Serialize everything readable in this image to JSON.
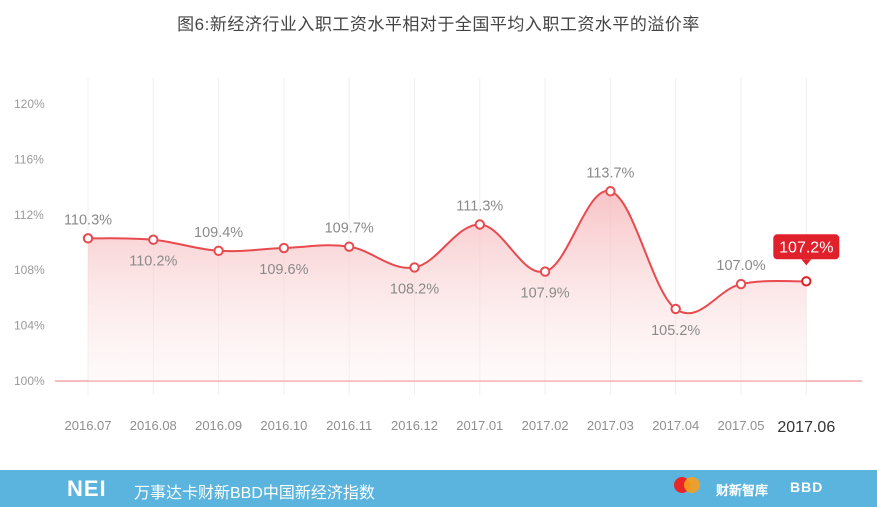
{
  "title": "图6:新经济行业入职工资水平相对于全国平均入职工资水平的溢价率",
  "footer": {
    "logo": "NEI",
    "text": "万事达卡财新BBD中国新经济指数",
    "partner_logos": [
      "mastercard-logo",
      "财新智库",
      "BBD"
    ],
    "caixin_label": "财新智库",
    "bbd_label": "BBD",
    "background": "#5ab4dd"
  },
  "chart_data": {
    "type": "area",
    "categories": [
      "2016.07",
      "2016.08",
      "2016.09",
      "2016.10",
      "2016.11",
      "2016.12",
      "2017.01",
      "2017.02",
      "2017.03",
      "2017.04",
      "2017.05",
      "2017.06"
    ],
    "values": [
      110.3,
      110.2,
      109.4,
      109.6,
      109.7,
      108.2,
      111.3,
      107.9,
      113.7,
      105.2,
      107.0,
      107.2
    ],
    "labels": [
      "110.3%",
      "110.2%",
      "109.4%",
      "109.6%",
      "109.7%",
      "108.2%",
      "111.3%",
      "107.9%",
      "113.7%",
      "105.2%",
      "107.0%",
      "107.2%"
    ],
    "ylim": [
      100,
      120
    ],
    "yticks": [
      100,
      104,
      108,
      112,
      116,
      120
    ],
    "ytick_labels": [
      "100%",
      "104%",
      "108%",
      "112%",
      "116%",
      "120%"
    ],
    "xlabel": "",
    "ylabel": "",
    "grid": "vertical",
    "highlight_last": true,
    "colors": {
      "line": "#e84a4f",
      "line_highlight": "#e0202a",
      "fill": "#f8c9cb",
      "baseline": "#f4a6a8",
      "badge": "#e0202a"
    }
  }
}
